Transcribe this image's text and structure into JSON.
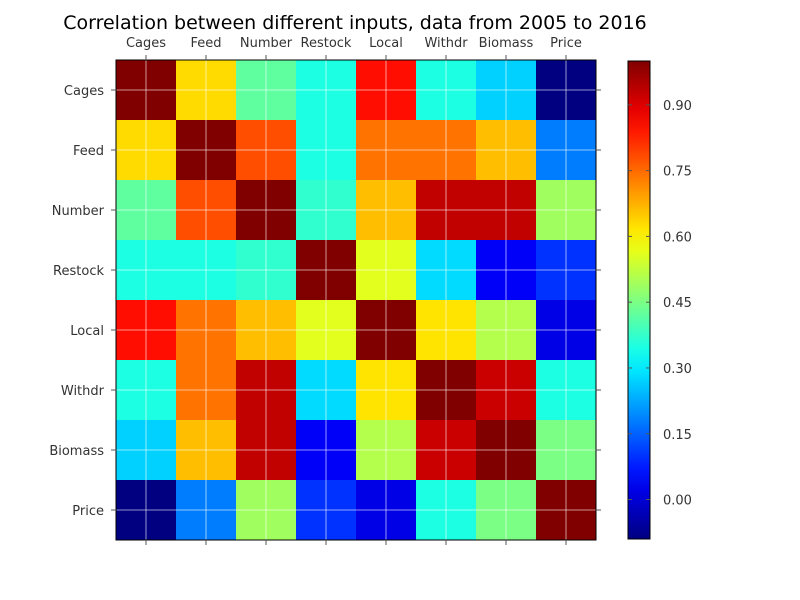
{
  "chart_data": {
    "type": "heatmap",
    "title": "Correlation between different inputs, data from 2005 to 2016",
    "x_tick_labels": [
      "Cages",
      "Feed",
      "Number",
      "Restock",
      "Local",
      "Withdr",
      "Biomass",
      "Price"
    ],
    "y_tick_labels": [
      "Cages",
      "Feed",
      "Number",
      "Restock",
      "Local",
      "Withdr",
      "Biomass",
      "Price"
    ],
    "values": [
      [
        1.0,
        0.63,
        0.42,
        0.35,
        0.85,
        0.35,
        0.27,
        -0.09
      ],
      [
        0.63,
        1.0,
        0.78,
        0.35,
        0.74,
        0.74,
        0.66,
        0.18
      ],
      [
        0.42,
        0.78,
        1.0,
        0.37,
        0.66,
        0.93,
        0.93,
        0.49
      ],
      [
        0.35,
        0.35,
        0.37,
        1.0,
        0.56,
        0.28,
        0.04,
        0.1
      ],
      [
        0.85,
        0.74,
        0.66,
        0.56,
        1.0,
        0.62,
        0.51,
        0.02
      ],
      [
        0.35,
        0.74,
        0.93,
        0.28,
        0.62,
        1.0,
        0.92,
        0.35
      ],
      [
        0.27,
        0.66,
        0.93,
        0.04,
        0.51,
        0.92,
        1.0,
        0.45
      ],
      [
        -0.09,
        0.18,
        0.49,
        0.1,
        0.02,
        0.35,
        0.45,
        1.0
      ]
    ],
    "colormap": "jet",
    "color_range": [
      -0.09,
      1.0
    ],
    "colorbar_ticks": [
      "0.00",
      "0.15",
      "0.30",
      "0.45",
      "0.60",
      "0.75",
      "0.90"
    ],
    "grid": true,
    "x_tick_position": "top"
  }
}
